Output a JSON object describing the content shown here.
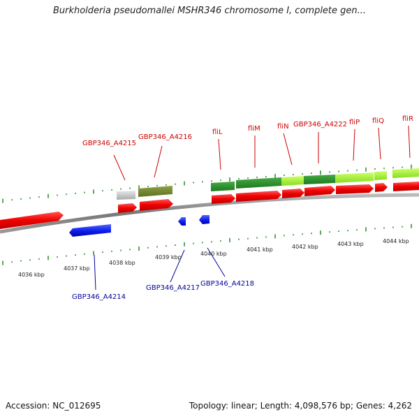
{
  "title": "Burkholderia pseudomallei MSHR346 chromosome I, complete gen...",
  "accession": "Accession: NC_012695",
  "summary": "Topology: linear; Length: 4,098,576 bp; Genes: 4,262",
  "colors": {
    "forward_label": "#cc0000",
    "reverse_label": "#000099",
    "tick": "#228b22",
    "backbone": "#888888"
  },
  "scale_labels": [
    "4036 kbp",
    "4037 kbp",
    "4038 kbp",
    "4039 kbp",
    "4040 kbp",
    "4041 kbp",
    "4042 kbp",
    "4043 kbp",
    "4044 kbp"
  ],
  "forward_labels": [
    "GBP346_A4215",
    "GBP346_A4216",
    "fliL",
    "fliM",
    "fliN",
    "GBP346_A4222",
    "fliP",
    "fliQ",
    "fliR"
  ],
  "reverse_labels": [
    "GBP346_A4214",
    "GBP346_A4217",
    "GBP346_A4218"
  ]
}
